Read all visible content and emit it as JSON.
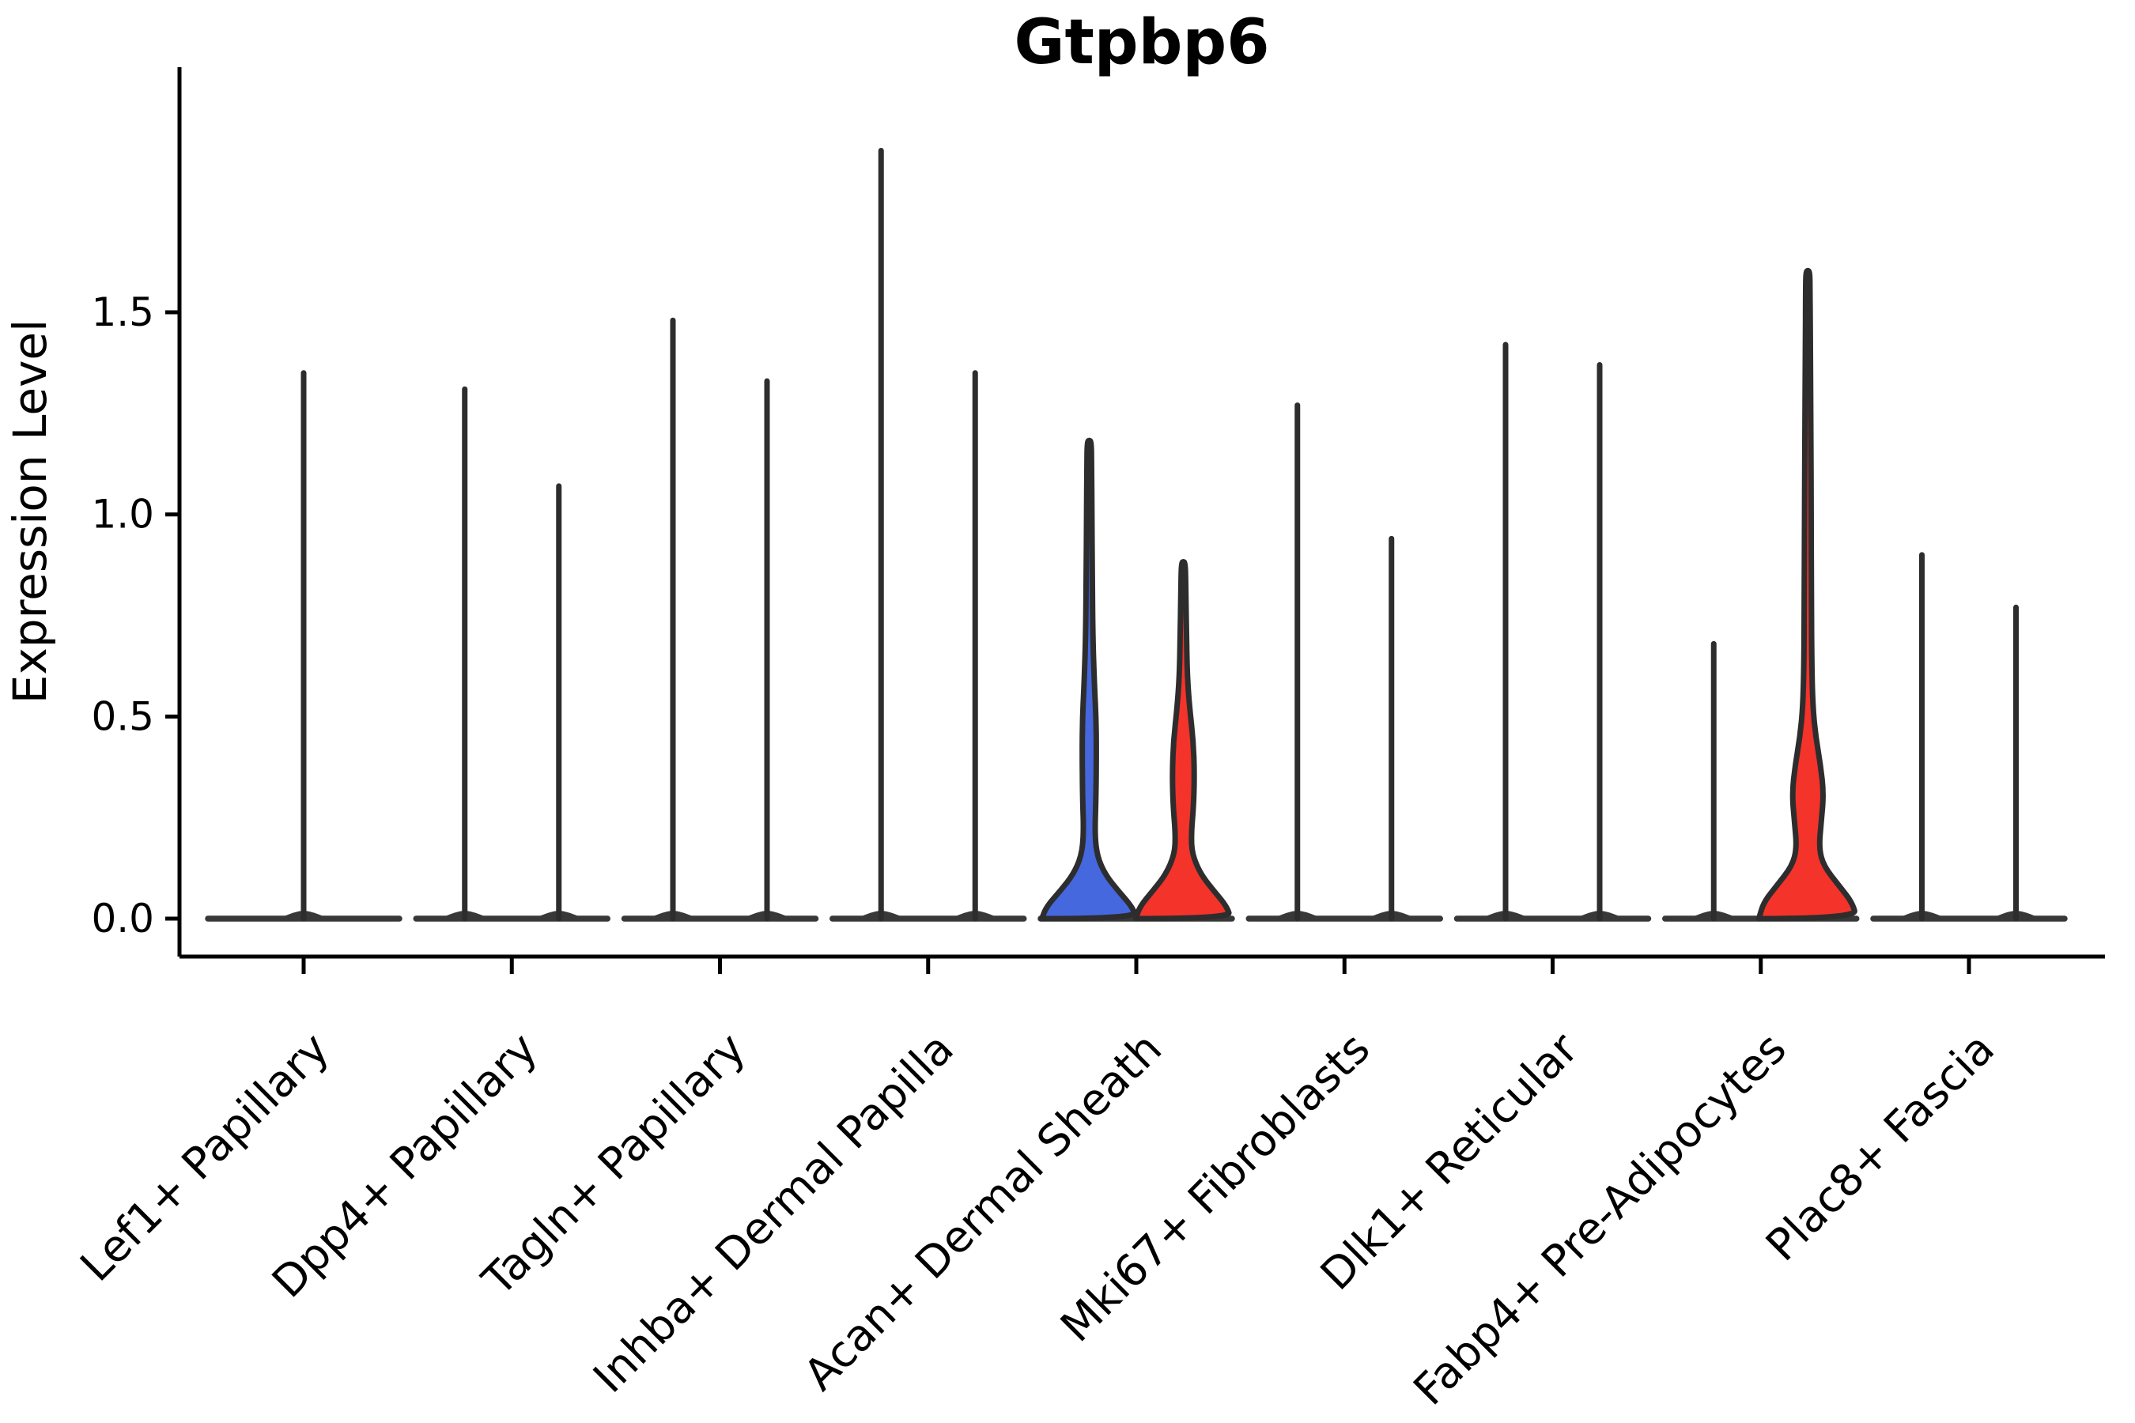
{
  "chart_data": {
    "type": "violin",
    "title": "Gtpbp6",
    "ylabel": "Expression Level",
    "xlabel": "",
    "grid": false,
    "legend_position": "none",
    "ytick_labels": [
      "0.0",
      "0.5",
      "1.0",
      "1.5"
    ],
    "ytick_values": [
      0.0,
      0.5,
      1.0,
      1.5
    ],
    "ylim": [
      -0.09,
      2.1
    ],
    "colors": {
      "left_group_fill": "#4568DF",
      "right_group_fill": "#F4332B",
      "violin_outline": "#2D2D2D",
      "axis": "#000000"
    },
    "categories": [
      "Lef1+ Papillary",
      "Dpp4+ Papillary",
      "Tagln+ Papillary",
      "Inhba+ Dermal Papilla",
      "Acan+ Dermal Sheath",
      "Mki67+ Fibroblasts",
      "Dlk1+ Reticular",
      "Fabp4+ Pre-Adipocytes",
      "Plac8+ Fascia"
    ],
    "violins": [
      {
        "category_index": 0,
        "side": "center",
        "style": "spike",
        "fill": "none",
        "max_expression": 1.35
      },
      {
        "category_index": 1,
        "side": "left",
        "style": "spike",
        "fill": "none",
        "max_expression": 1.31
      },
      {
        "category_index": 1,
        "side": "right",
        "style": "spike",
        "fill": "none",
        "max_expression": 1.07
      },
      {
        "category_index": 2,
        "side": "left",
        "style": "spike",
        "fill": "none",
        "max_expression": 1.48
      },
      {
        "category_index": 2,
        "side": "right",
        "style": "spike",
        "fill": "none",
        "max_expression": 1.33
      },
      {
        "category_index": 3,
        "side": "left",
        "style": "spike",
        "fill": "none",
        "max_expression": 1.9
      },
      {
        "category_index": 3,
        "side": "right",
        "style": "spike",
        "fill": "none",
        "max_expression": 1.35
      },
      {
        "category_index": 4,
        "side": "left",
        "style": "filled",
        "fill": "#4568DF",
        "max_expression": 1.18,
        "width_profile": [
          [
            0,
            60
          ],
          [
            0.03,
            54
          ],
          [
            0.07,
            36
          ],
          [
            0.11,
            20
          ],
          [
            0.155,
            10
          ],
          [
            0.21,
            7
          ],
          [
            0.3,
            8.5
          ],
          [
            0.42,
            9
          ],
          [
            0.5,
            8.5
          ],
          [
            0.58,
            6.5
          ],
          [
            0.7,
            4.5
          ],
          [
            0.85,
            3.8
          ],
          [
            1.0,
            3.4
          ],
          [
            1.12,
            3
          ],
          [
            1.18,
            2.6
          ]
        ]
      },
      {
        "category_index": 4,
        "side": "right",
        "style": "filled",
        "fill": "#F4332B",
        "max_expression": 0.88,
        "width_profile": [
          [
            0,
            60
          ],
          [
            0.03,
            55
          ],
          [
            0.07,
            38
          ],
          [
            0.11,
            22
          ],
          [
            0.16,
            11
          ],
          [
            0.21,
            10
          ],
          [
            0.28,
            13
          ],
          [
            0.36,
            14
          ],
          [
            0.44,
            12.5
          ],
          [
            0.52,
            8
          ],
          [
            0.6,
            5
          ],
          [
            0.7,
            4
          ],
          [
            0.8,
            3.2
          ],
          [
            0.88,
            2.6
          ]
        ]
      },
      {
        "category_index": 5,
        "side": "left",
        "style": "spike",
        "fill": "none",
        "max_expression": 1.27
      },
      {
        "category_index": 5,
        "side": "right",
        "style": "spike",
        "fill": "none",
        "max_expression": 0.94
      },
      {
        "category_index": 6,
        "side": "left",
        "style": "spike",
        "fill": "none",
        "max_expression": 1.42
      },
      {
        "category_index": 6,
        "side": "right",
        "style": "spike",
        "fill": "none",
        "max_expression": 1.37
      },
      {
        "category_index": 7,
        "side": "left",
        "style": "spike",
        "fill": "none",
        "max_expression": 0.68
      },
      {
        "category_index": 7,
        "side": "right",
        "style": "filled",
        "fill": "#F4332B",
        "max_expression": 1.6,
        "width_profile": [
          [
            0,
            62
          ],
          [
            0.04,
            56
          ],
          [
            0.08,
            40
          ],
          [
            0.13,
            20
          ],
          [
            0.175,
            14
          ],
          [
            0.24,
            17
          ],
          [
            0.31,
            20
          ],
          [
            0.38,
            16
          ],
          [
            0.45,
            10
          ],
          [
            0.52,
            6.5
          ],
          [
            0.62,
            5
          ],
          [
            0.8,
            4.5
          ],
          [
            1.0,
            4.2
          ],
          [
            1.2,
            3.8
          ],
          [
            1.4,
            3.2
          ],
          [
            1.55,
            2.8
          ],
          [
            1.6,
            2.5
          ]
        ]
      },
      {
        "category_index": 8,
        "side": "left",
        "style": "spike",
        "fill": "none",
        "max_expression": 0.9
      },
      {
        "category_index": 8,
        "side": "right",
        "style": "spike",
        "fill": "none",
        "max_expression": 0.77
      }
    ]
  }
}
